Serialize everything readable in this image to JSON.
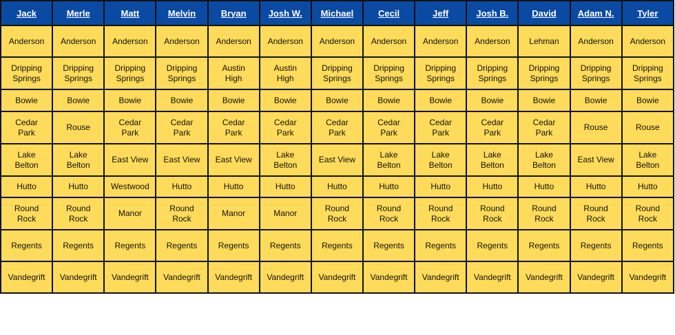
{
  "columns": [
    "Jack",
    "Merle",
    "Matt",
    "Melvin",
    "Bryan",
    "Josh W.",
    "Michael",
    "Cecil",
    "Jeff",
    "Josh B.",
    "David",
    "Adam N.",
    "Tyler"
  ],
  "rows": [
    [
      "Anderson",
      "Anderson",
      "Anderson",
      "Anderson",
      "Anderson",
      "Anderson",
      "Anderson",
      "Anderson",
      "Anderson",
      "Anderson",
      "Lehman",
      "Anderson",
      "Anderson"
    ],
    [
      "Dripping\nSprings",
      "Dripping\nSprings",
      "Dripping\nSprings",
      "Dripping\nSprings",
      "Austin\nHigh",
      "Austin\nHigh",
      "Dripping\nSprings",
      "Dripping\nSprings",
      "Dripping\nSprings",
      "Dripping\nSprings",
      "Dripping\nSprings",
      "Dripping\nSprings",
      "Dripping\nSprings"
    ],
    [
      "Bowie",
      "Bowie",
      "Bowie",
      "Bowie",
      "Bowie",
      "Bowie",
      "Bowie",
      "Bowie",
      "Bowie",
      "Bowie",
      "Bowie",
      "Bowie",
      "Bowie"
    ],
    [
      "Cedar\nPark",
      "Rouse",
      "Cedar\nPark",
      "Cedar\nPark",
      "Cedar\nPark",
      "Cedar\nPark",
      "Cedar\nPark",
      "Cedar\nPark",
      "Cedar\nPark",
      "Cedar\nPark",
      "Cedar\nPark",
      "Rouse",
      "Rouse"
    ],
    [
      "Lake\nBelton",
      "Lake\nBelton",
      "East View",
      "East View",
      "East View",
      "Lake\nBelton",
      "East View",
      "Lake\nBelton",
      "Lake\nBelton",
      "Lake\nBelton",
      "Lake\nBelton",
      "East View",
      "Lake\nBelton"
    ],
    [
      "Hutto",
      "Hutto",
      "Westwood",
      "Hutto",
      "Hutto",
      "Hutto",
      "Hutto",
      "Hutto",
      "Hutto",
      "Hutto",
      "Hutto",
      "Hutto",
      "Hutto"
    ],
    [
      "Round\nRock",
      "Round\nRock",
      "Manor",
      "Round\nRock",
      "Manor",
      "Manor",
      "Round\nRock",
      "Round\nRock",
      "Round\nRock",
      "Round\nRock",
      "Round\nRock",
      "Round\nRock",
      "Round\nRock"
    ],
    [
      "Regents",
      "Regents",
      "Regents",
      "Regents",
      "Regents",
      "Regents",
      "Regents",
      "Regents",
      "Regents",
      "Regents",
      "Regents",
      "Regents",
      "Regents"
    ],
    [
      "Vandegrift",
      "Vandegrift",
      "Vandegrift",
      "Vandegrift",
      "Vandegrift",
      "Vandegrift",
      "Vandegrift",
      "Vandegrift",
      "Vandegrift",
      "Vandegrift",
      "Vandegrift",
      "Vandegrift",
      "Vandegrift"
    ]
  ],
  "colors": {
    "header_bg": "#0b4aa2",
    "header_text": "#ffffff",
    "cell_bg": "#fedb5a",
    "border": "#111111"
  }
}
